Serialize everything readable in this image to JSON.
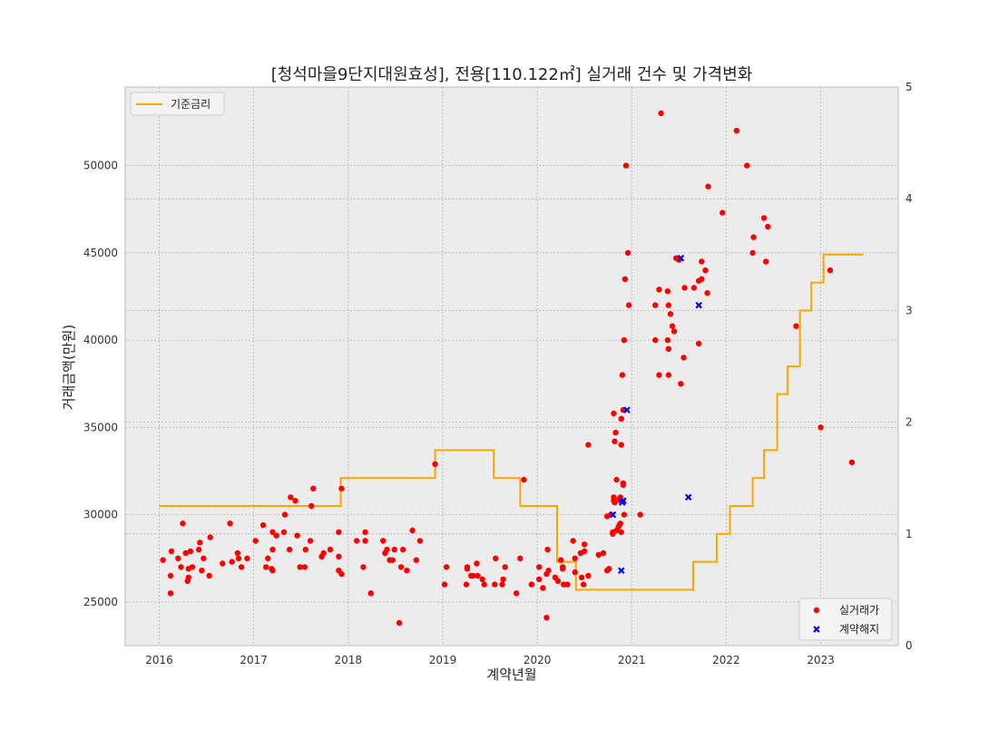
{
  "chart_data": {
    "type": "scatter",
    "title": "[청석마을9단지대원효성], 전용[110.122㎡] 실거래 건수 및 가격변화",
    "xlabel": "계약년월",
    "ylabel": "거래금액(만원)",
    "xlim": [
      2015.64,
      2023.82
    ],
    "ylim": [
      22500,
      54500
    ],
    "y2lim": [
      0,
      5
    ],
    "x_ticks": [
      "2016",
      "2017",
      "2018",
      "2019",
      "2020",
      "2021",
      "2022",
      "2023"
    ],
    "y_ticks": [
      "25000",
      "30000",
      "35000",
      "40000",
      "45000",
      "50000"
    ],
    "y2_ticks": [
      "0",
      "1",
      "2",
      "3",
      "4",
      "5"
    ],
    "grid": true,
    "series": [
      {
        "name": "실거래가",
        "kind": "scatter",
        "color": "#ff0000",
        "marker": "circle",
        "axis": "left",
        "points": [
          [
            2016.04,
            27400
          ],
          [
            2016.12,
            26500
          ],
          [
            2016.12,
            25500
          ],
          [
            2016.13,
            27900
          ],
          [
            2016.2,
            27500
          ],
          [
            2016.23,
            27000
          ],
          [
            2016.25,
            29500
          ],
          [
            2016.28,
            27800
          ],
          [
            2016.3,
            26200
          ],
          [
            2016.31,
            26400
          ],
          [
            2016.31,
            26900
          ],
          [
            2016.33,
            27900
          ],
          [
            2016.35,
            27000
          ],
          [
            2016.42,
            28000
          ],
          [
            2016.43,
            28400
          ],
          [
            2016.45,
            26800
          ],
          [
            2016.47,
            27500
          ],
          [
            2016.53,
            26500
          ],
          [
            2016.54,
            28700
          ],
          [
            2016.67,
            27200
          ],
          [
            2016.75,
            29500
          ],
          [
            2016.77,
            27300
          ],
          [
            2016.83,
            27800
          ],
          [
            2016.84,
            27500
          ],
          [
            2016.87,
            27000
          ],
          [
            2016.93,
            27500
          ],
          [
            2017.02,
            28500
          ],
          [
            2017.1,
            29400
          ],
          [
            2017.13,
            27000
          ],
          [
            2017.15,
            27500
          ],
          [
            2017.19,
            26900
          ],
          [
            2017.2,
            26800
          ],
          [
            2017.2,
            28000
          ],
          [
            2017.2,
            29000
          ],
          [
            2017.24,
            28800
          ],
          [
            2017.32,
            29000
          ],
          [
            2017.33,
            30000
          ],
          [
            2017.38,
            28000
          ],
          [
            2017.39,
            31000
          ],
          [
            2017.44,
            30800
          ],
          [
            2017.46,
            28800
          ],
          [
            2017.49,
            27000
          ],
          [
            2017.54,
            27000
          ],
          [
            2017.55,
            28000
          ],
          [
            2017.6,
            28500
          ],
          [
            2017.61,
            30500
          ],
          [
            2017.63,
            31500
          ],
          [
            2017.72,
            27600
          ],
          [
            2017.74,
            27800
          ],
          [
            2017.81,
            28000
          ],
          [
            2017.9,
            29000
          ],
          [
            2017.9,
            27600
          ],
          [
            2017.9,
            26800
          ],
          [
            2017.93,
            26600
          ],
          [
            2017.93,
            31500
          ],
          [
            2018.09,
            28500
          ],
          [
            2018.16,
            27000
          ],
          [
            2018.18,
            28500
          ],
          [
            2018.18,
            29000
          ],
          [
            2018.24,
            25500
          ],
          [
            2018.37,
            28500
          ],
          [
            2018.39,
            27800
          ],
          [
            2018.41,
            28000
          ],
          [
            2018.44,
            27400
          ],
          [
            2018.47,
            27400
          ],
          [
            2018.49,
            28000
          ],
          [
            2018.54,
            23800
          ],
          [
            2018.56,
            27000
          ],
          [
            2018.58,
            28000
          ],
          [
            2018.62,
            26800
          ],
          [
            2018.68,
            29100
          ],
          [
            2018.72,
            27400
          ],
          [
            2018.76,
            28500
          ],
          [
            2018.92,
            32900
          ],
          [
            2019.02,
            26000
          ],
          [
            2019.04,
            27000
          ],
          [
            2019.25,
            26000
          ],
          [
            2019.26,
            26900
          ],
          [
            2019.26,
            27000
          ],
          [
            2019.3,
            26500
          ],
          [
            2019.32,
            26500
          ],
          [
            2019.36,
            27200
          ],
          [
            2019.37,
            26500
          ],
          [
            2019.42,
            26300
          ],
          [
            2019.44,
            26000
          ],
          [
            2019.55,
            26000
          ],
          [
            2019.56,
            27500
          ],
          [
            2019.63,
            26000
          ],
          [
            2019.64,
            26300
          ],
          [
            2019.66,
            27000
          ],
          [
            2019.78,
            25500
          ],
          [
            2019.82,
            27500
          ],
          [
            2019.86,
            32000
          ],
          [
            2019.94,
            26000
          ],
          [
            2020.02,
            26300
          ],
          [
            2020.02,
            27000
          ],
          [
            2020.06,
            25800
          ],
          [
            2020.1,
            24100
          ],
          [
            2020.1,
            26600
          ],
          [
            2020.11,
            28000
          ],
          [
            2020.12,
            26800
          ],
          [
            2020.19,
            26400
          ],
          [
            2020.22,
            26200
          ],
          [
            2020.25,
            27400
          ],
          [
            2020.27,
            26900
          ],
          [
            2020.27,
            27000
          ],
          [
            2020.28,
            26000
          ],
          [
            2020.32,
            26000
          ],
          [
            2020.38,
            28500
          ],
          [
            2020.4,
            27500
          ],
          [
            2020.4,
            26700
          ],
          [
            2020.46,
            27800
          ],
          [
            2020.47,
            26400
          ],
          [
            2020.49,
            26000
          ],
          [
            2020.5,
            28300
          ],
          [
            2020.5,
            27900
          ],
          [
            2020.54,
            26500
          ],
          [
            2020.54,
            34000
          ],
          [
            2020.65,
            27700
          ],
          [
            2020.7,
            27800
          ],
          [
            2020.74,
            26800
          ],
          [
            2020.74,
            29900
          ],
          [
            2020.76,
            26900
          ],
          [
            2020.78,
            30000
          ],
          [
            2020.8,
            28900
          ],
          [
            2020.8,
            29000
          ],
          [
            2020.81,
            30800
          ],
          [
            2020.81,
            31000
          ],
          [
            2020.81,
            35800
          ],
          [
            2020.82,
            34200
          ],
          [
            2020.82,
            30700
          ],
          [
            2020.83,
            34700
          ],
          [
            2020.84,
            32000
          ],
          [
            2020.84,
            29100
          ],
          [
            2020.86,
            29300
          ],
          [
            2020.87,
            30900
          ],
          [
            2020.87,
            29400
          ],
          [
            2020.88,
            29500
          ],
          [
            2020.88,
            30800
          ],
          [
            2020.88,
            31000
          ],
          [
            2020.89,
            35500
          ],
          [
            2020.89,
            34000
          ],
          [
            2020.89,
            29000
          ],
          [
            2020.91,
            36000
          ],
          [
            2020.9,
            38000
          ],
          [
            2020.91,
            31800
          ],
          [
            2020.91,
            31700
          ],
          [
            2020.92,
            30000
          ],
          [
            2020.92,
            40000
          ],
          [
            2020.93,
            43500
          ],
          [
            2020.94,
            50000
          ],
          [
            2020.96,
            45000
          ],
          [
            2020.97,
            42000
          ],
          [
            2021.09,
            30000
          ],
          [
            2021.25,
            40000
          ],
          [
            2021.25,
            42000
          ],
          [
            2021.29,
            38000
          ],
          [
            2021.29,
            42900
          ],
          [
            2021.31,
            53000
          ],
          [
            2021.38,
            42800
          ],
          [
            2021.38,
            40000
          ],
          [
            2021.39,
            42000
          ],
          [
            2021.39,
            39500
          ],
          [
            2021.39,
            38000
          ],
          [
            2021.41,
            41500
          ],
          [
            2021.43,
            40800
          ],
          [
            2021.45,
            40500
          ],
          [
            2021.47,
            44700
          ],
          [
            2021.5,
            44600
          ],
          [
            2021.52,
            37500
          ],
          [
            2021.55,
            39000
          ],
          [
            2021.56,
            43000
          ],
          [
            2021.66,
            43000
          ],
          [
            2021.71,
            43400
          ],
          [
            2021.71,
            39800
          ],
          [
            2021.74,
            44500
          ],
          [
            2021.74,
            43500
          ],
          [
            2021.78,
            44000
          ],
          [
            2021.8,
            42700
          ],
          [
            2021.81,
            48800
          ],
          [
            2021.96,
            47300
          ],
          [
            2022.11,
            52000
          ],
          [
            2022.22,
            50000
          ],
          [
            2022.28,
            45000
          ],
          [
            2022.29,
            45900
          ],
          [
            2022.4,
            47000
          ],
          [
            2022.42,
            44500
          ],
          [
            2022.44,
            46500
          ],
          [
            2022.74,
            40800
          ],
          [
            2023.0,
            35000
          ],
          [
            2023.1,
            44000
          ],
          [
            2023.33,
            33000
          ]
        ]
      },
      {
        "name": "계약해지",
        "kind": "scatter",
        "color": "#0000ff",
        "marker": "x",
        "axis": "left",
        "points": [
          [
            2020.8,
            30000
          ],
          [
            2020.89,
            26800
          ],
          [
            2020.9,
            30700
          ],
          [
            2020.91,
            30800
          ],
          [
            2020.95,
            36000
          ],
          [
            2021.52,
            44700
          ],
          [
            2021.6,
            31000
          ],
          [
            2021.71,
            42000
          ]
        ]
      },
      {
        "name": "기준금리",
        "kind": "step",
        "color": "#ffa500",
        "axis": "right",
        "points": [
          [
            2016.0,
            1.25
          ],
          [
            2016.44,
            1.25
          ],
          [
            2016.44,
            1.25
          ],
          [
            2017.92,
            1.25
          ],
          [
            2017.92,
            1.5
          ],
          [
            2018.92,
            1.5
          ],
          [
            2018.92,
            1.75
          ],
          [
            2019.54,
            1.75
          ],
          [
            2019.54,
            1.5
          ],
          [
            2019.82,
            1.5
          ],
          [
            2019.82,
            1.25
          ],
          [
            2020.21,
            1.25
          ],
          [
            2020.21,
            0.75
          ],
          [
            2020.41,
            0.75
          ],
          [
            2020.41,
            0.5
          ],
          [
            2021.65,
            0.5
          ],
          [
            2021.65,
            0.75
          ],
          [
            2021.9,
            0.75
          ],
          [
            2021.9,
            1.0
          ],
          [
            2022.04,
            1.0
          ],
          [
            2022.04,
            1.25
          ],
          [
            2022.28,
            1.25
          ],
          [
            2022.28,
            1.5
          ],
          [
            2022.4,
            1.5
          ],
          [
            2022.4,
            1.75
          ],
          [
            2022.54,
            1.75
          ],
          [
            2022.54,
            2.25
          ],
          [
            2022.65,
            2.25
          ],
          [
            2022.65,
            2.5
          ],
          [
            2022.78,
            2.5
          ],
          [
            2022.78,
            3.0
          ],
          [
            2022.9,
            3.0
          ],
          [
            2022.9,
            3.25
          ],
          [
            2023.03,
            3.25
          ],
          [
            2023.03,
            3.5
          ],
          [
            2023.45,
            3.5
          ]
        ]
      }
    ],
    "legend_left": {
      "position": "upper-left",
      "items": [
        "기준금리"
      ]
    },
    "legend_right": {
      "position": "lower-right",
      "items": [
        "실거래가",
        "계약해지"
      ]
    }
  },
  "colors": {
    "plot_bg": "#ececec",
    "grid": "#b0b0b0",
    "frame": "#bcbcbc"
  }
}
